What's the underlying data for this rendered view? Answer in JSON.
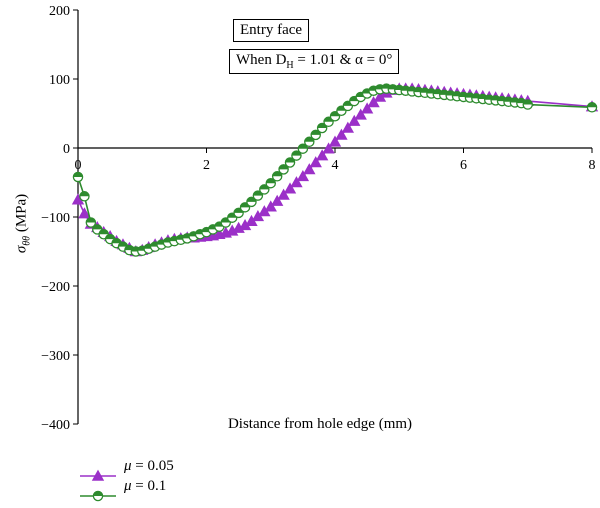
{
  "chart_data": {
    "type": "line",
    "xlabel": "Distance from hole edge (mm)",
    "ylabel_symbol": "σ",
    "ylabel_sub": "θθ",
    "ylabel_unit": "(MPa)",
    "xlim": [
      0,
      8
    ],
    "ylim": [
      -400,
      200
    ],
    "x_ticks": [
      0,
      2,
      4,
      6,
      8
    ],
    "y_ticks": [
      200,
      100,
      0,
      -100,
      -200,
      -300,
      -400
    ],
    "x_tick_labels": [
      "0",
      "2",
      "4",
      "6",
      "8"
    ],
    "y_tick_labels": [
      "200",
      "100",
      "0",
      "−100",
      "−200",
      "−300",
      "−400"
    ],
    "annotations": {
      "line1": "Entry face",
      "line2_prefix": "When D",
      "line2_sub": "H",
      "line2_suffix": " = 1.01 & α = 0°"
    },
    "grid": false,
    "legend_position": "bottom-left",
    "series": [
      {
        "name_symbol": "μ",
        "name_suffix": " = 0.05",
        "color": "#9b30c8",
        "marker": "triangle",
        "x": [
          0,
          0.1,
          0.2,
          0.3,
          0.4,
          0.5,
          0.6,
          0.7,
          0.8,
          0.9,
          1.0,
          1.1,
          1.2,
          1.3,
          1.4,
          1.5,
          1.6,
          1.7,
          1.8,
          1.9,
          2.0,
          2.1,
          2.2,
          2.3,
          2.4,
          2.5,
          2.6,
          2.7,
          2.8,
          2.9,
          3.0,
          3.1,
          3.2,
          3.3,
          3.4,
          3.5,
          3.6,
          3.7,
          3.8,
          3.9,
          4.0,
          4.1,
          4.2,
          4.3,
          4.4,
          4.5,
          4.6,
          4.7,
          4.8,
          4.9,
          5.0,
          5.1,
          5.2,
          5.3,
          5.4,
          5.5,
          5.6,
          5.7,
          5.8,
          5.9,
          6.0,
          6.1,
          6.2,
          6.3,
          6.4,
          6.5,
          6.6,
          6.7,
          6.8,
          6.9,
          7.0,
          8.0
        ],
        "y": [
          -75,
          -95,
          -110,
          -115,
          -122,
          -128,
          -135,
          -140,
          -145,
          -150,
          -148,
          -144,
          -140,
          -137,
          -134,
          -132,
          -131,
          -130,
          -130,
          -129,
          -128,
          -127,
          -125,
          -123,
          -120,
          -116,
          -112,
          -106,
          -99,
          -92,
          -85,
          -77,
          -68,
          -59,
          -50,
          -41,
          -31,
          -21,
          -11,
          -1,
          9,
          19,
          29,
          39,
          48,
          57,
          66,
          74,
          80,
          84,
          86,
          86,
          86,
          85,
          84,
          83,
          82,
          81,
          80,
          79,
          78,
          77,
          76,
          75,
          74,
          73,
          72,
          71,
          70,
          69,
          68,
          60
        ]
      },
      {
        "name_symbol": "μ",
        "name_suffix": " = 0.1",
        "color": "#2e8b2e",
        "marker": "circle",
        "x": [
          0,
          0.1,
          0.2,
          0.3,
          0.4,
          0.5,
          0.6,
          0.7,
          0.8,
          0.9,
          1.0,
          1.1,
          1.2,
          1.3,
          1.4,
          1.5,
          1.6,
          1.7,
          1.8,
          1.9,
          2.0,
          2.1,
          2.2,
          2.3,
          2.4,
          2.5,
          2.6,
          2.7,
          2.8,
          2.9,
          3.0,
          3.1,
          3.2,
          3.3,
          3.4,
          3.5,
          3.6,
          3.7,
          3.8,
          3.9,
          4.0,
          4.1,
          4.2,
          4.3,
          4.4,
          4.5,
          4.6,
          4.7,
          4.8,
          4.9,
          5.0,
          5.1,
          5.2,
          5.3,
          5.4,
          5.5,
          5.6,
          5.7,
          5.8,
          5.9,
          6.0,
          6.1,
          6.2,
          6.3,
          6.4,
          6.5,
          6.6,
          6.7,
          6.8,
          6.9,
          7.0,
          8.0
        ],
        "y": [
          -42,
          -70,
          -108,
          -118,
          -125,
          -132,
          -138,
          -143,
          -148,
          -150,
          -149,
          -146,
          -143,
          -140,
          -137,
          -135,
          -133,
          -131,
          -128,
          -125,
          -122,
          -118,
          -114,
          -108,
          -101,
          -94,
          -86,
          -78,
          -69,
          -60,
          -51,
          -41,
          -31,
          -21,
          -11,
          -1,
          9,
          19,
          29,
          38,
          46,
          54,
          61,
          68,
          74,
          79,
          83,
          85,
          86,
          85,
          84,
          83,
          82,
          81,
          80,
          79,
          78,
          77,
          76,
          75,
          74,
          73,
          72,
          71,
          70,
          69,
          68,
          67,
          66,
          65,
          63,
          59
        ]
      }
    ]
  }
}
